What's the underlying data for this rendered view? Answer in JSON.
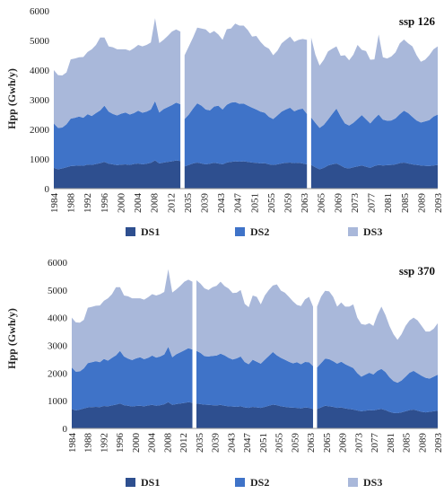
{
  "colors": {
    "DS1": "#2e4f8f",
    "DS2": "#3f73c8",
    "DS3": "#a9b8da",
    "axis": "#999999"
  },
  "chart_data": [
    {
      "type": "area",
      "stacked": true,
      "title": "ssp 126",
      "ylabel": "Hpp  (Gwh/y)",
      "xlabel": "",
      "ylim": [
        0,
        6000
      ],
      "yticks": [
        0,
        1000,
        2000,
        3000,
        4000,
        5000,
        6000
      ],
      "grid": false,
      "legend": "bottom",
      "xtick_labels": [
        "1984",
        "1988",
        "1992",
        "1996",
        "2000",
        "2004",
        "2008",
        "2012",
        "2035",
        "2039",
        "2043",
        "2047",
        "2051",
        "2055",
        "2059",
        "2063",
        "2065",
        "2069",
        "2073",
        "2077",
        "2081",
        "2085",
        "2089",
        "2093"
      ],
      "segments": [
        {
          "x": [
            "1984",
            "1985",
            "1986",
            "1987",
            "1988",
            "1989",
            "1990",
            "1991",
            "1992",
            "1993",
            "1994",
            "1995",
            "1996",
            "1997",
            "1998",
            "1999",
            "2000",
            "2001",
            "2002",
            "2003",
            "2004",
            "2005",
            "2006",
            "2007",
            "2008",
            "2009",
            "2010",
            "2011",
            "2012",
            "2013",
            "2014"
          ],
          "series": [
            {
              "name": "DS1",
              "values": [
                700,
                650,
                680,
                720,
                760,
                770,
                780,
                770,
                810,
                800,
                830,
                860,
                900,
                840,
                820,
                790,
                810,
                820,
                800,
                830,
                850,
                820,
                840,
                870,
                950,
                850,
                880,
                900,
                920,
                950,
                930
              ]
            },
            {
              "name": "DS2",
              "values": [
                1500,
                1400,
                1380,
                1450,
                1600,
                1620,
                1650,
                1620,
                1700,
                1650,
                1720,
                1780,
                1900,
                1760,
                1700,
                1680,
                1720,
                1750,
                1700,
                1720,
                1780,
                1740,
                1760,
                1800,
                2000,
                1720,
                1800,
                1850,
                1900,
                1950,
                1920
              ]
            },
            {
              "name": "DS3",
              "values": [
                1800,
                1780,
                1760,
                1750,
                2000,
                2000,
                2000,
                2050,
                2100,
                2250,
                2300,
                2460,
                2300,
                2200,
                2250,
                2230,
                2170,
                2130,
                2150,
                2190,
                2220,
                2240,
                2250,
                2260,
                2800,
                2340,
                2340,
                2400,
                2480,
                2470,
                2450
              ]
            }
          ]
        },
        {
          "x": [
            "2035",
            "2036",
            "2037",
            "2038",
            "2039",
            "2040",
            "2041",
            "2042",
            "2043",
            "2044",
            "2045",
            "2046",
            "2047",
            "2048",
            "2049",
            "2050",
            "2051",
            "2052",
            "2053",
            "2054",
            "2055",
            "2056",
            "2057",
            "2058",
            "2059",
            "2060",
            "2061",
            "2062",
            "2063",
            "2064"
          ],
          "series": [
            {
              "name": "DS1",
              "values": [
                750,
                800,
                850,
                880,
                850,
                820,
                840,
                870,
                850,
                820,
                880,
                900,
                920,
                910,
                920,
                900,
                880,
                870,
                850,
                860,
                820,
                800,
                820,
                850,
                870,
                880,
                860,
                870,
                850,
                820
              ]
            },
            {
              "name": "DS2",
              "values": [
                1600,
                1700,
                1850,
                2000,
                1950,
                1850,
                1800,
                1900,
                1950,
                1850,
                1950,
                2000,
                2000,
                1950,
                1950,
                1900,
                1850,
                1800,
                1750,
                1700,
                1600,
                1550,
                1650,
                1750,
                1800,
                1850,
                1750,
                1800,
                1850,
                1700
              ]
            },
            {
              "name": "DS3",
              "values": [
                2150,
                2300,
                2400,
                2550,
                2600,
                2700,
                2600,
                2550,
                2400,
                2350,
                2550,
                2500,
                2650,
                2640,
                2630,
                2550,
                2400,
                2480,
                2350,
                2240,
                2300,
                2150,
                2180,
                2300,
                2350,
                2400,
                2340,
                2350,
                2350,
                2500
              ]
            }
          ]
        },
        {
          "x": [
            "2065",
            "2066",
            "2067",
            "2068",
            "2069",
            "2070",
            "2071",
            "2072",
            "2073",
            "2074",
            "2075",
            "2076",
            "2077",
            "2078",
            "2079",
            "2080",
            "2081",
            "2082",
            "2083",
            "2084",
            "2085",
            "2086",
            "2087",
            "2088",
            "2089",
            "2090",
            "2091",
            "2092",
            "2093",
            "2094",
            "2095"
          ],
          "series": [
            {
              "name": "DS1",
              "values": [
                800,
                720,
                650,
                700,
                780,
                820,
                850,
                780,
                700,
                680,
                720,
                750,
                780,
                740,
                700,
                760,
                800,
                780,
                790,
                800,
                820,
                860,
                880,
                850,
                820,
                800,
                780,
                770,
                760,
                780,
                800
              ]
            },
            {
              "name": "DS2",
              "values": [
                1600,
                1500,
                1400,
                1450,
                1550,
                1700,
                1850,
                1650,
                1500,
                1450,
                1500,
                1600,
                1700,
                1600,
                1500,
                1600,
                1700,
                1550,
                1500,
                1500,
                1550,
                1650,
                1750,
                1700,
                1600,
                1500,
                1450,
                1500,
                1550,
                1650,
                1700
              ]
            },
            {
              "name": "DS3",
              "values": [
                2700,
                2300,
                2100,
                2200,
                2300,
                2200,
                2100,
                2050,
                2300,
                2200,
                2300,
                2500,
                2200,
                2300,
                2150,
                2000,
                2700,
                2100,
                2100,
                2160,
                2230,
                2390,
                2400,
                2350,
                2380,
                2200,
                2050,
                2080,
                2190,
                2270,
                2300
              ]
            }
          ]
        }
      ]
    },
    {
      "type": "area",
      "stacked": true,
      "title": "ssp 370",
      "ylabel": "Hpp (Gwh/y)",
      "xlabel": "",
      "ylim": [
        0,
        6000
      ],
      "yticks": [
        0,
        1000,
        2000,
        3000,
        4000,
        5000,
        6000
      ],
      "grid": false,
      "legend": "bottom",
      "xtick_labels": [
        "1984",
        "1988",
        "1992",
        "1996",
        "2000",
        "2004",
        "2008",
        "2012",
        "2035",
        "2039",
        "2043",
        "2047",
        "2051",
        "2055",
        "2059",
        "2063",
        "2065",
        "2069",
        "2073",
        "2077",
        "2081",
        "2085",
        "2089",
        "2093"
      ],
      "segments": [
        {
          "x": [
            "1984",
            "1985",
            "1986",
            "1987",
            "1988",
            "1989",
            "1990",
            "1991",
            "1992",
            "1993",
            "1994",
            "1995",
            "1996",
            "1997",
            "1998",
            "1999",
            "2000",
            "2001",
            "2002",
            "2003",
            "2004",
            "2005",
            "2006",
            "2007",
            "2008",
            "2009",
            "2010",
            "2011",
            "2012",
            "2013",
            "2014"
          ],
          "series": [
            {
              "name": "DS1",
              "values": [
                700,
                650,
                680,
                720,
                760,
                770,
                780,
                770,
                810,
                800,
                830,
                860,
                900,
                840,
                820,
                790,
                810,
                820,
                800,
                830,
                850,
                820,
                840,
                870,
                950,
                850,
                880,
                900,
                920,
                950,
                930
              ]
            },
            {
              "name": "DS2",
              "values": [
                1500,
                1400,
                1380,
                1450,
                1600,
                1620,
                1650,
                1620,
                1700,
                1650,
                1720,
                1780,
                1900,
                1760,
                1700,
                1680,
                1720,
                1750,
                1700,
                1720,
                1780,
                1740,
                1760,
                1800,
                2000,
                1720,
                1800,
                1850,
                1900,
                1950,
                1920
              ]
            },
            {
              "name": "DS3",
              "values": [
                1800,
                1780,
                1760,
                1750,
                2000,
                2000,
                2000,
                2050,
                2100,
                2250,
                2300,
                2460,
                2300,
                2200,
                2250,
                2230,
                2170,
                2130,
                2150,
                2190,
                2220,
                2240,
                2250,
                2260,
                2800,
                2340,
                2340,
                2400,
                2480,
                2470,
                2450
              ]
            }
          ]
        },
        {
          "x": [
            "2035",
            "2036",
            "2037",
            "2038",
            "2039",
            "2040",
            "2041",
            "2042",
            "2043",
            "2044",
            "2045",
            "2046",
            "2047",
            "2048",
            "2049",
            "2050",
            "2051",
            "2052",
            "2053",
            "2054",
            "2055",
            "2056",
            "2057",
            "2058",
            "2059",
            "2060",
            "2061",
            "2062",
            "2063",
            "2064"
          ],
          "series": [
            {
              "name": "DS1",
              "values": [
                900,
                880,
                860,
                850,
                840,
                830,
                850,
                820,
                800,
                790,
                780,
                800,
                760,
                740,
                780,
                760,
                740,
                780,
                820,
                860,
                840,
                800,
                780,
                760,
                750,
                740,
                720,
                760,
                740,
                700
              ]
            },
            {
              "name": "DS2",
              "values": [
                1900,
                1850,
                1750,
                1750,
                1780,
                1800,
                1850,
                1820,
                1750,
                1700,
                1750,
                1800,
                1640,
                1580,
                1700,
                1650,
                1600,
                1700,
                1800,
                1900,
                1800,
                1750,
                1700,
                1650,
                1600,
                1650,
                1600,
                1640,
                1650,
                1550
              ]
            },
            {
              "name": "DS3",
              "values": [
                2550,
                2500,
                2450,
                2400,
                2480,
                2520,
                2600,
                2500,
                2500,
                2400,
                2370,
                2400,
                2100,
                2060,
                2320,
                2340,
                2140,
                2320,
                2380,
                2400,
                2560,
                2430,
                2420,
                2340,
                2240,
                2070,
                2100,
                2260,
                2360,
                2150
              ]
            }
          ]
        },
        {
          "x": [
            "2065",
            "2066",
            "2067",
            "2068",
            "2069",
            "2070",
            "2071",
            "2072",
            "2073",
            "2074",
            "2075",
            "2076",
            "2077",
            "2078",
            "2079",
            "2080",
            "2081",
            "2082",
            "2083",
            "2084",
            "2085",
            "2086",
            "2087",
            "2088",
            "2089",
            "2090",
            "2091",
            "2092",
            "2093",
            "2094",
            "2095"
          ],
          "series": [
            {
              "name": "DS1",
              "values": [
                700,
                760,
                820,
                800,
                780,
                740,
                760,
                720,
                700,
                680,
                650,
                620,
                640,
                660,
                650,
                680,
                700,
                660,
                600,
                560,
                550,
                580,
                620,
                660,
                680,
                640,
                600,
                580,
                600,
                620,
                640
              ]
            },
            {
              "name": "DS2",
              "values": [
                1500,
                1600,
                1700,
                1700,
                1650,
                1600,
                1650,
                1600,
                1550,
                1500,
                1350,
                1250,
                1300,
                1350,
                1300,
                1400,
                1450,
                1380,
                1250,
                1150,
                1100,
                1150,
                1250,
                1350,
                1400,
                1350,
                1300,
                1250,
                1200,
                1250,
                1300
              ]
            },
            {
              "name": "DS3",
              "values": [
                2200,
                2400,
                2450,
                2450,
                2320,
                2060,
                2140,
                2080,
                2150,
                2300,
                2000,
                1900,
                1800,
                1790,
                1750,
                2020,
                2250,
                2060,
                1850,
                1690,
                1550,
                1670,
                1830,
                1890,
                1920,
                1910,
                1800,
                1670,
                1700,
                1730,
                1860
              ]
            }
          ]
        }
      ]
    }
  ],
  "legend": [
    {
      "key": "DS1",
      "label": "DS1"
    },
    {
      "key": "DS2",
      "label": "DS2"
    },
    {
      "key": "DS3",
      "label": "DS3"
    }
  ]
}
